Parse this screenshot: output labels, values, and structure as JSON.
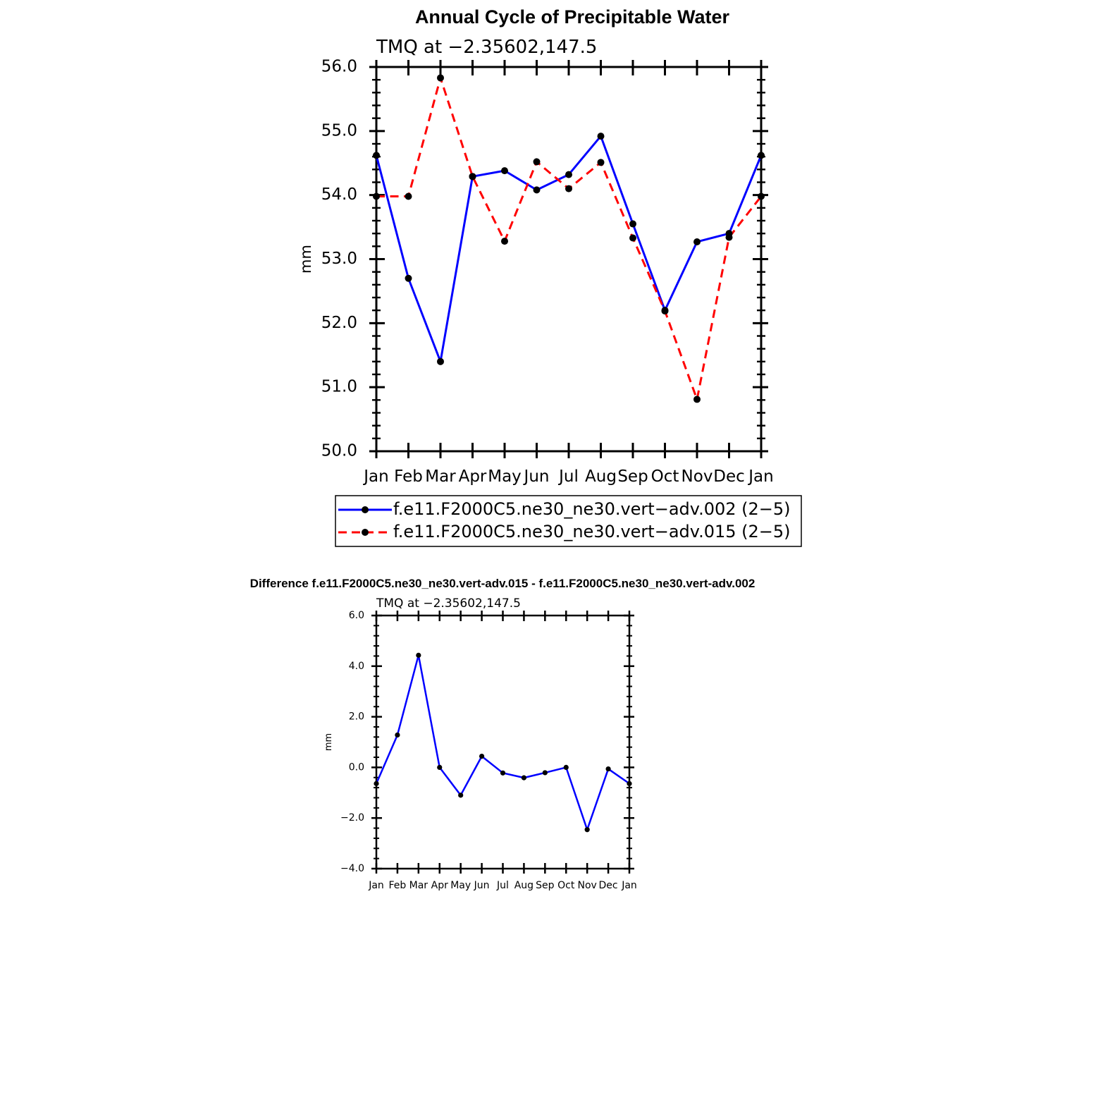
{
  "main_title": "Annual Cycle of Precipitable Water",
  "chart_data": [
    {
      "type": "line",
      "title": "Annual Cycle of Precipitable Water",
      "subtitle": "TMQ at −2.35602,147.5",
      "ylabel": "mm",
      "xlabel": "",
      "categories": [
        "Jan",
        "Feb",
        "Mar",
        "Apr",
        "May",
        "Jun",
        "Jul",
        "Aug",
        "Sep",
        "Oct",
        "Nov",
        "Dec",
        "Jan"
      ],
      "ylim": [
        50.0,
        56.0
      ],
      "yticks": [
        "50.0",
        "51.0",
        "52.0",
        "53.0",
        "54.0",
        "55.0",
        "56.0"
      ],
      "series": [
        {
          "name": "f.e11.F2000C5.ne30_ne30.vert−adv.002 (2−5)",
          "color": "#0000ff",
          "dash": "solid",
          "values": [
            54.62,
            52.7,
            51.4,
            54.29,
            54.38,
            54.08,
            54.32,
            54.92,
            53.55,
            52.2,
            53.27,
            53.4,
            54.62
          ]
        },
        {
          "name": "f.e11.F2000C5.ne30_ne30.vert−adv.015 (2−5)",
          "color": "#ff0000",
          "dash": "dashed",
          "values": [
            53.98,
            53.98,
            55.83,
            54.29,
            53.28,
            54.52,
            54.1,
            54.51,
            53.33,
            52.19,
            50.81,
            53.34,
            53.98
          ]
        }
      ],
      "legend": "bottom",
      "grid": false
    },
    {
      "type": "line",
      "title": "Difference f.e11.F2000C5.ne30_ne30.vert-adv.015 - f.e11.F2000C5.ne30_ne30.vert-adv.002",
      "subtitle": "TMQ at −2.35602,147.5",
      "ylabel": "mm",
      "xlabel": "",
      "categories": [
        "Jan",
        "Feb",
        "Mar",
        "Apr",
        "May",
        "Jun",
        "Jul",
        "Aug",
        "Sep",
        "Oct",
        "Nov",
        "Dec",
        "Jan"
      ],
      "ylim": [
        -4.0,
        6.0
      ],
      "yticks": [
        "−4.0",
        "−2.0",
        "0.0",
        "2.0",
        "4.0",
        "6.0"
      ],
      "series": [
        {
          "color": "#0000ff",
          "dash": "solid",
          "values": [
            -0.64,
            1.28,
            4.43,
            0.0,
            -1.1,
            0.44,
            -0.22,
            -0.41,
            -0.21,
            0.0,
            -2.46,
            -0.06,
            -0.64
          ]
        }
      ],
      "grid": false
    }
  ]
}
